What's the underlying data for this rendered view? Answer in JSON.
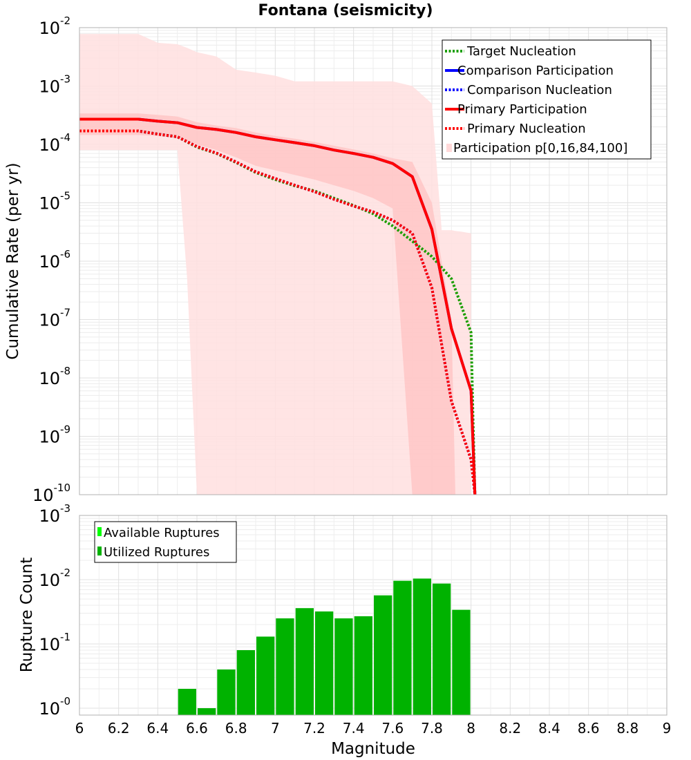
{
  "chart_data": [
    {
      "type": "line",
      "title": "Fontana (seismicity)",
      "xlabel": "",
      "ylabel": "Cumulative Rate (per yr)",
      "xlim": [
        6,
        9
      ],
      "ylim": [
        1e-10,
        0.01
      ],
      "yscale": "log",
      "y_tick_labels": [
        "10-2",
        "10-3",
        "10-4",
        "10-5",
        "10-6",
        "10-7",
        "10-8",
        "10-9",
        "10-10"
      ],
      "grid": true,
      "legend_position": "top-right",
      "legend": [
        {
          "label": "Target Nucleation",
          "color": "#1a9e00",
          "style": "dotted"
        },
        {
          "label": "Comparison Participation",
          "color": "#0000ff",
          "style": "solid"
        },
        {
          "label": "Comparison Nucleation",
          "color": "#0000ff",
          "style": "dotted"
        },
        {
          "label": "Primary Participation",
          "color": "#ff0000",
          "style": "solid"
        },
        {
          "label": "Primary Nucleation",
          "color": "#ff0000",
          "style": "dotted"
        },
        {
          "label": "Participation p[0,16,84,100]",
          "color": "#ffd9d9",
          "style": "band"
        }
      ],
      "series": [
        {
          "name": "Target Nucleation",
          "color": "#1a9e00",
          "style": "dotted",
          "x": [
            6.0,
            6.3,
            6.4,
            6.5,
            6.6,
            6.7,
            6.8,
            6.9,
            7.0,
            7.1,
            7.2,
            7.3,
            7.4,
            7.5,
            7.6,
            7.7,
            7.8,
            7.9,
            8.0,
            8.01,
            8.02
          ],
          "y": [
            0.00017,
            0.00017,
            0.00015,
            0.000135,
            9e-05,
            7e-05,
            4.9e-05,
            3.3e-05,
            2.5e-05,
            1.95e-05,
            1.6e-05,
            1.2e-05,
            9e-06,
            6.5e-06,
            4e-06,
            2.2e-06,
            1.2e-06,
            5e-07,
            6e-08,
            2e-09,
            1e-10
          ]
        },
        {
          "name": "Comparison Participation",
          "color": "#0000ff",
          "style": "solid",
          "x": [
            6.0,
            6.3,
            6.4,
            6.5,
            6.6,
            6.7,
            6.8,
            6.9,
            7.0,
            7.1,
            7.2,
            7.3,
            7.4,
            7.5,
            7.6,
            7.7,
            7.8,
            7.9,
            8.0,
            8.02
          ],
          "y": [
            0.00027,
            0.00027,
            0.00025,
            0.000235,
            0.000195,
            0.00018,
            0.00016,
            0.000135,
            0.00012,
            0.000107,
            9.5e-05,
            8e-05,
            7e-05,
            6e-05,
            4.7e-05,
            2.8e-05,
            3.5e-06,
            7e-08,
            6e-09,
            1e-10
          ]
        },
        {
          "name": "Comparison Nucleation",
          "color": "#0000ff",
          "style": "dotted",
          "x": [
            6.0,
            6.3,
            6.4,
            6.5,
            6.6,
            6.7,
            6.8,
            6.9,
            7.0,
            7.1,
            7.2,
            7.3,
            7.4,
            7.5,
            7.6,
            7.7,
            7.8,
            7.9,
            8.0,
            8.02
          ],
          "y": [
            0.00017,
            0.00017,
            0.00015,
            0.000135,
            9.2e-05,
            7.1e-05,
            5e-05,
            3.4e-05,
            2.6e-05,
            2e-05,
            1.55e-05,
            1.15e-05,
            8.8e-06,
            7e-06,
            5e-06,
            3e-06,
            3.5e-07,
            4e-09,
            4e-10,
            1e-10
          ]
        },
        {
          "name": "Primary Participation",
          "color": "#ff0000",
          "style": "solid",
          "x": [
            6.0,
            6.3,
            6.4,
            6.5,
            6.6,
            6.7,
            6.8,
            6.9,
            7.0,
            7.1,
            7.2,
            7.3,
            7.4,
            7.5,
            7.6,
            7.7,
            7.8,
            7.9,
            8.0,
            8.02
          ],
          "y": [
            0.00027,
            0.00027,
            0.00025,
            0.000235,
            0.000195,
            0.00018,
            0.00016,
            0.000135,
            0.00012,
            0.000107,
            9.5e-05,
            8e-05,
            7e-05,
            6e-05,
            4.7e-05,
            2.8e-05,
            3.5e-06,
            7e-08,
            6e-09,
            1e-10
          ]
        },
        {
          "name": "Primary Nucleation",
          "color": "#ff0000",
          "style": "dotted",
          "x": [
            6.0,
            6.3,
            6.4,
            6.5,
            6.6,
            6.7,
            6.8,
            6.9,
            7.0,
            7.1,
            7.2,
            7.3,
            7.4,
            7.5,
            7.6,
            7.7,
            7.8,
            7.9,
            8.0,
            8.02
          ],
          "y": [
            0.00017,
            0.00017,
            0.00015,
            0.000135,
            9.2e-05,
            7.1e-05,
            5e-05,
            3.4e-05,
            2.6e-05,
            2e-05,
            1.55e-05,
            1.15e-05,
            8.8e-06,
            7e-06,
            5e-06,
            3e-06,
            3.5e-07,
            4e-09,
            4e-10,
            1e-10
          ]
        }
      ],
      "bands": [
        {
          "name": "Participation p[0,16,84,100] outer",
          "color": "#ffdfdf",
          "x": [
            6.0,
            6.3,
            6.4,
            6.5,
            6.55,
            6.6,
            6.7,
            6.8,
            6.9,
            7.0,
            7.1,
            7.2,
            7.3,
            7.4,
            7.5,
            7.6,
            7.7,
            7.8,
            7.85,
            7.9,
            7.92,
            7.95,
            8.0
          ],
          "upper": [
            0.0078,
            0.0078,
            0.0055,
            0.0052,
            0.0045,
            0.0038,
            0.0032,
            0.0019,
            0.0017,
            0.0015,
            0.0012,
            0.0012,
            0.0012,
            0.0012,
            0.0012,
            0.0012,
            0.001,
            0.0005,
            3.4e-06,
            3.4e-06,
            3.3e-06,
            3.2e-06,
            3e-06
          ],
          "lower": [
            8e-05,
            8e-05,
            8e-05,
            8e-05,
            5e-07,
            1e-10,
            1e-10,
            1e-10,
            1e-10,
            1e-10,
            1e-10,
            1e-10,
            1e-10,
            1e-10,
            1e-10,
            1e-10,
            1e-10,
            1e-10,
            1e-10,
            1e-10,
            1e-10,
            1e-10,
            1e-10
          ]
        },
        {
          "name": "Participation p[0,16,84,100] inner",
          "color": "#ffc0c0",
          "x": [
            6.0,
            6.3,
            6.4,
            6.5,
            6.6,
            6.7,
            6.8,
            6.9,
            7.0,
            7.1,
            7.2,
            7.3,
            7.4,
            7.5,
            7.6,
            7.7,
            7.8,
            7.9,
            7.92
          ],
          "upper": [
            0.00034,
            0.00034,
            0.00032,
            0.0003,
            0.00024,
            0.00021,
            0.00019,
            0.00016,
            0.00014,
            0.000125,
            0.00011,
            9.5e-05,
            8.2e-05,
            7e-05,
            5.8e-05,
            5e-05,
            1e-05,
            1e-07,
            1e-10
          ],
          "lower": [
            0.000145,
            0.000145,
            0.00014,
            0.00013,
            0.0001,
            8e-05,
            6e-05,
            4.3e-05,
            3.6e-05,
            3e-05,
            2.5e-05,
            2e-05,
            1.6e-05,
            1.2e-05,
            8e-06,
            1e-10,
            1e-10,
            1e-10,
            1e-10
          ]
        }
      ]
    },
    {
      "type": "bar",
      "title": "",
      "xlabel": "Magnitude",
      "ylabel": "Rupture Count",
      "xlim": [
        6,
        9
      ],
      "ylim": [
        0.78,
        1000
      ],
      "yscale": "log",
      "y_tick_labels": [
        "10-3",
        "10-2",
        "10-1",
        "10-0"
      ],
      "x_tick_labels": [
        "6",
        "6.2",
        "6.4",
        "6.6",
        "6.8",
        "7",
        "7.2",
        "7.4",
        "7.6",
        "7.8",
        "8",
        "8.2",
        "8.4",
        "8.6",
        "8.8",
        "9"
      ],
      "grid": true,
      "legend_position": "top-left",
      "legend": [
        {
          "label": "Available Ruptures",
          "color": "#00ff00"
        },
        {
          "label": "Utilized Ruptures",
          "color": "#00b200"
        }
      ],
      "bar_width": 0.1,
      "series": [
        {
          "name": "Utilized Ruptures",
          "color": "#00b200",
          "x": [
            6.55,
            6.65,
            6.75,
            6.85,
            6.95,
            7.05,
            7.15,
            7.25,
            7.35,
            7.45,
            7.55,
            7.65,
            7.75,
            7.85,
            7.95
          ],
          "values": [
            2,
            1,
            4,
            8,
            13,
            25,
            36,
            32,
            25,
            27,
            57,
            96,
            104,
            87,
            34
          ]
        }
      ]
    }
  ]
}
